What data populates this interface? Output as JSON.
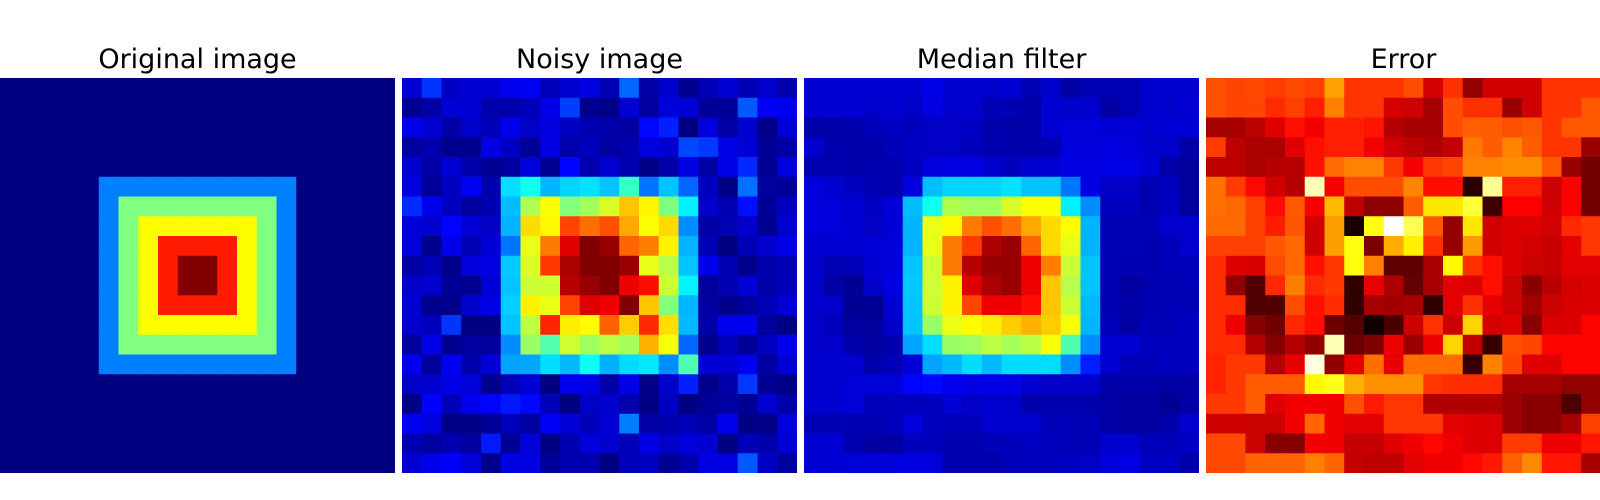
{
  "chart_data": [
    {
      "type": "heatmap",
      "title": "Original image",
      "colormap": "jet",
      "vmin": 0,
      "vmax": 4,
      "grid_size": 20,
      "pattern": "concentric_square",
      "levels": [
        {
          "from": 5,
          "to": 14,
          "value": 1
        },
        {
          "from": 6,
          "to": 13,
          "value": 2
        },
        {
          "from": 7,
          "to": 12,
          "value": 2.5
        },
        {
          "from": 8,
          "to": 11,
          "value": 3.4
        },
        {
          "from": 9,
          "to": 10,
          "value": 4
        }
      ],
      "axes": "off"
    },
    {
      "type": "heatmap",
      "title": "Noisy image",
      "colormap": "jet",
      "vmin": 0,
      "vmax": 4,
      "grid_size": 20,
      "pattern": "concentric_square_with_noise",
      "axes": "off"
    },
    {
      "type": "heatmap",
      "title": "Median filter",
      "colormap": "jet",
      "vmin": 0,
      "vmax": 4,
      "grid_size": 20,
      "pattern": "median_filtered",
      "axes": "off"
    },
    {
      "type": "heatmap",
      "title": "Error",
      "colormap": "hot",
      "grid_size": 20,
      "pattern": "absolute_error",
      "axes": "off"
    }
  ],
  "colors": {
    "background": "#ffffff",
    "title": "#000000"
  }
}
